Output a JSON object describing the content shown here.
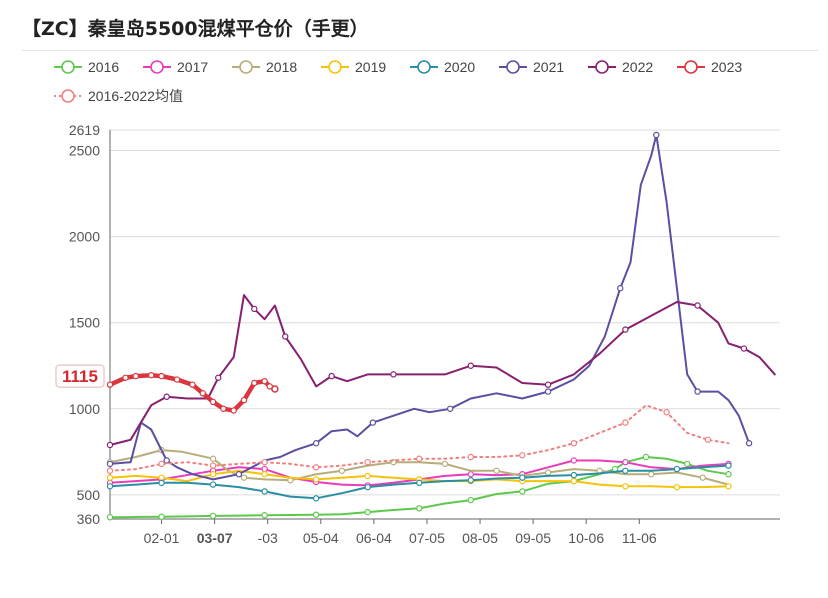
{
  "title": "【ZC】秦皇岛5500混煤平仓价（手更）",
  "chart_data": {
    "type": "line",
    "title": "【ZC】秦皇岛5500混煤平仓价（手更）",
    "ylim": [
      360,
      2619
    ],
    "y_ticks": [
      360,
      500,
      1000,
      1500,
      2000,
      2500,
      2619
    ],
    "x_ticks": [
      "02-01",
      "03-07",
      "-03",
      "05-04",
      "06-04",
      "07-05",
      "08-05",
      "09-05",
      "10-06",
      "11-06"
    ],
    "x_highlight_tick": "03-07",
    "current_value_label": "1115",
    "grid": "horizontal",
    "legend_position": "top-left",
    "series": [
      {
        "name": "2016",
        "color": "#5ec84d",
        "style": "solid",
        "values": [
          [
            0,
            370
          ],
          [
            0.6,
            372
          ],
          [
            1,
            373
          ],
          [
            1.5,
            375
          ],
          [
            2,
            378
          ],
          [
            2.5,
            380
          ],
          [
            3,
            382
          ],
          [
            3.5,
            383
          ],
          [
            4,
            385
          ],
          [
            4.5,
            388
          ],
          [
            5,
            400
          ],
          [
            5.5,
            412
          ],
          [
            6,
            422
          ],
          [
            6.5,
            450
          ],
          [
            7,
            470
          ],
          [
            7.5,
            505
          ],
          [
            8,
            520
          ],
          [
            8.5,
            565
          ],
          [
            9,
            580
          ],
          [
            9.5,
            620
          ],
          [
            9.8,
            650
          ],
          [
            10,
            690
          ],
          [
            10.4,
            720
          ],
          [
            10.8,
            710
          ],
          [
            11.2,
            680
          ],
          [
            11.6,
            640
          ],
          [
            12,
            620
          ]
        ]
      },
      {
        "name": "2017",
        "color": "#e83cba",
        "style": "solid",
        "values": [
          [
            0,
            570
          ],
          [
            0.5,
            580
          ],
          [
            1,
            590
          ],
          [
            1.6,
            620
          ],
          [
            2,
            640
          ],
          [
            2.5,
            660
          ],
          [
            3,
            650
          ],
          [
            3.5,
            600
          ],
          [
            4,
            575
          ],
          [
            4.5,
            560
          ],
          [
            5,
            555
          ],
          [
            5.5,
            570
          ],
          [
            6,
            590
          ],
          [
            6.5,
            610
          ],
          [
            7,
            620
          ],
          [
            7.5,
            615
          ],
          [
            8,
            620
          ],
          [
            8.5,
            660
          ],
          [
            9,
            700
          ],
          [
            9.5,
            700
          ],
          [
            10,
            690
          ],
          [
            10.5,
            660
          ],
          [
            11,
            650
          ],
          [
            11.5,
            670
          ],
          [
            12,
            680
          ]
        ]
      },
      {
        "name": "2018",
        "color": "#b6ad7a",
        "style": "solid",
        "values": [
          [
            0,
            690
          ],
          [
            0.5,
            720
          ],
          [
            1,
            760
          ],
          [
            1.4,
            750
          ],
          [
            2,
            710
          ],
          [
            2.3,
            640
          ],
          [
            2.6,
            600
          ],
          [
            3,
            590
          ],
          [
            3.5,
            585
          ],
          [
            4,
            620
          ],
          [
            4.5,
            640
          ],
          [
            5,
            670
          ],
          [
            5.5,
            690
          ],
          [
            6,
            690
          ],
          [
            6.5,
            680
          ],
          [
            7,
            640
          ],
          [
            7.5,
            640
          ],
          [
            8,
            610
          ],
          [
            8.5,
            630
          ],
          [
            9,
            650
          ],
          [
            9.5,
            640
          ],
          [
            10,
            620
          ],
          [
            10.5,
            620
          ],
          [
            11,
            630
          ],
          [
            11.5,
            600
          ],
          [
            12,
            560
          ]
        ]
      },
      {
        "name": "2019",
        "color": "#f8c20a",
        "style": "solid",
        "values": [
          [
            0,
            600
          ],
          [
            0.5,
            610
          ],
          [
            1,
            600
          ],
          [
            1.5,
            580
          ],
          [
            2,
            620
          ],
          [
            2.5,
            640
          ],
          [
            3,
            620
          ],
          [
            3.5,
            600
          ],
          [
            4,
            590
          ],
          [
            4.5,
            600
          ],
          [
            5,
            610
          ],
          [
            5.5,
            600
          ],
          [
            6,
            590
          ],
          [
            6.5,
            580
          ],
          [
            7,
            580
          ],
          [
            7.5,
            590
          ],
          [
            8,
            580
          ],
          [
            8.5,
            580
          ],
          [
            9,
            580
          ],
          [
            9.5,
            560
          ],
          [
            10,
            550
          ],
          [
            10.5,
            550
          ],
          [
            11,
            545
          ],
          [
            11.5,
            545
          ],
          [
            12,
            550
          ]
        ]
      },
      {
        "name": "2020",
        "color": "#2a8ea4",
        "style": "solid",
        "values": [
          [
            0,
            550
          ],
          [
            0.5,
            560
          ],
          [
            1,
            570
          ],
          [
            1.5,
            570
          ],
          [
            2,
            560
          ],
          [
            2.5,
            545
          ],
          [
            3,
            520
          ],
          [
            3.5,
            490
          ],
          [
            4,
            480
          ],
          [
            4.5,
            510
          ],
          [
            5,
            545
          ],
          [
            5.5,
            560
          ],
          [
            6,
            570
          ],
          [
            6.5,
            580
          ],
          [
            7,
            585
          ],
          [
            7.5,
            595
          ],
          [
            8,
            600
          ],
          [
            8.5,
            610
          ],
          [
            9,
            615
          ],
          [
            9.5,
            625
          ],
          [
            10,
            640
          ],
          [
            10.5,
            640
          ],
          [
            11,
            650
          ],
          [
            11.5,
            660
          ],
          [
            12,
            670
          ]
        ]
      },
      {
        "name": "2021",
        "color": "#5c4ea0",
        "style": "solid",
        "values": [
          [
            0,
            680
          ],
          [
            0.4,
            690
          ],
          [
            0.6,
            920
          ],
          [
            0.8,
            880
          ],
          [
            1.1,
            700
          ],
          [
            1.3,
            660
          ],
          [
            1.6,
            620
          ],
          [
            2,
            590
          ],
          [
            2.5,
            620
          ],
          [
            3,
            700
          ],
          [
            3.3,
            720
          ],
          [
            3.6,
            760
          ],
          [
            4,
            800
          ],
          [
            4.3,
            870
          ],
          [
            4.6,
            880
          ],
          [
            4.8,
            840
          ],
          [
            5.1,
            920
          ],
          [
            5.5,
            960
          ],
          [
            5.9,
            1000
          ],
          [
            6.2,
            980
          ],
          [
            6.6,
            1000
          ],
          [
            7,
            1060
          ],
          [
            7.5,
            1090
          ],
          [
            8,
            1060
          ],
          [
            8.5,
            1100
          ],
          [
            9,
            1170
          ],
          [
            9.3,
            1250
          ],
          [
            9.6,
            1420
          ],
          [
            9.9,
            1700
          ],
          [
            10.1,
            1850
          ],
          [
            10.3,
            2300
          ],
          [
            10.5,
            2470
          ],
          [
            10.6,
            2590
          ],
          [
            10.8,
            2200
          ],
          [
            11,
            1700
          ],
          [
            11.2,
            1200
          ],
          [
            11.4,
            1100
          ],
          [
            11.8,
            1100
          ],
          [
            12,
            1050
          ],
          [
            12.2,
            960
          ],
          [
            12.4,
            800
          ]
        ]
      },
      {
        "name": "2022",
        "color": "#872070",
        "style": "solid",
        "values": [
          [
            0,
            790
          ],
          [
            0.4,
            820
          ],
          [
            0.8,
            1020
          ],
          [
            1.1,
            1070
          ],
          [
            1.5,
            1060
          ],
          [
            1.9,
            1060
          ],
          [
            2.1,
            1180
          ],
          [
            2.4,
            1300
          ],
          [
            2.6,
            1660
          ],
          [
            2.8,
            1580
          ],
          [
            3,
            1520
          ],
          [
            3.2,
            1600
          ],
          [
            3.4,
            1420
          ],
          [
            3.7,
            1290
          ],
          [
            4,
            1130
          ],
          [
            4.3,
            1190
          ],
          [
            4.6,
            1160
          ],
          [
            5,
            1200
          ],
          [
            5.5,
            1200
          ],
          [
            6,
            1200
          ],
          [
            6.5,
            1200
          ],
          [
            7,
            1250
          ],
          [
            7.5,
            1240
          ],
          [
            8,
            1150
          ],
          [
            8.5,
            1140
          ],
          [
            9,
            1200
          ],
          [
            9.5,
            1320
          ],
          [
            10,
            1460
          ],
          [
            10.5,
            1540
          ],
          [
            11,
            1620
          ],
          [
            11.4,
            1600
          ],
          [
            11.8,
            1500
          ],
          [
            12,
            1380
          ],
          [
            12.3,
            1350
          ],
          [
            12.6,
            1300
          ],
          [
            12.9,
            1200
          ]
        ]
      },
      {
        "name": "2023",
        "color": "#d9363e",
        "style": "solid",
        "values": [
          [
            0,
            1140
          ],
          [
            0.3,
            1180
          ],
          [
            0.5,
            1190
          ],
          [
            0.8,
            1195
          ],
          [
            1,
            1190
          ],
          [
            1.3,
            1170
          ],
          [
            1.6,
            1140
          ],
          [
            1.8,
            1090
          ],
          [
            2,
            1040
          ],
          [
            2.2,
            1000
          ],
          [
            2.4,
            990
          ],
          [
            2.6,
            1050
          ],
          [
            2.8,
            1150
          ],
          [
            3,
            1160
          ],
          [
            3.1,
            1130
          ],
          [
            3.2,
            1115
          ]
        ]
      },
      {
        "name": "2016-2022均值",
        "color": "#f08080",
        "style": "dotted",
        "values": [
          [
            0,
            640
          ],
          [
            0.5,
            650
          ],
          [
            1,
            680
          ],
          [
            1.5,
            690
          ],
          [
            2,
            670
          ],
          [
            2.5,
            680
          ],
          [
            3,
            690
          ],
          [
            3.5,
            680
          ],
          [
            4,
            660
          ],
          [
            4.5,
            670
          ],
          [
            5,
            690
          ],
          [
            5.5,
            700
          ],
          [
            6,
            710
          ],
          [
            6.5,
            710
          ],
          [
            7,
            720
          ],
          [
            7.5,
            720
          ],
          [
            8,
            730
          ],
          [
            8.5,
            760
          ],
          [
            9,
            800
          ],
          [
            9.5,
            860
          ],
          [
            10,
            920
          ],
          [
            10.4,
            1020
          ],
          [
            10.8,
            980
          ],
          [
            11.2,
            860
          ],
          [
            11.6,
            820
          ],
          [
            12,
            800
          ]
        ]
      }
    ]
  }
}
